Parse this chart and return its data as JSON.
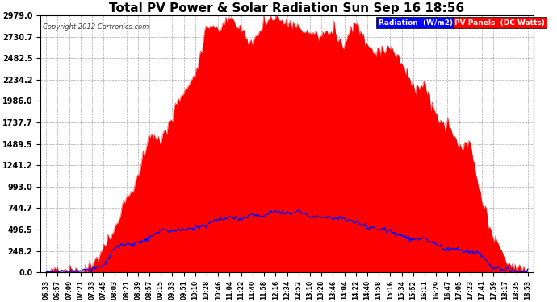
{
  "title": "Total PV Power & Solar Radiation Sun Sep 16 18:56",
  "copyright": "Copyright 2012 Cartronics.com",
  "legend_radiation": "Radiation  (W/m2)",
  "legend_pv": "PV Panels  (DC Watts)",
  "ymax": 2979.0,
  "yticks": [
    0.0,
    248.2,
    496.5,
    744.7,
    993.0,
    1241.2,
    1489.5,
    1737.7,
    1986.0,
    2234.2,
    2482.5,
    2730.7,
    2979.0
  ],
  "bg_color": "#ffffff",
  "plot_bg_color": "#ffffff",
  "grid_color": "#aaaaaa",
  "pv_color": "#ff0000",
  "radiation_color": "#0000ff",
  "x_label_fontsize": 5.5,
  "time_labels": [
    "06:33",
    "06:57",
    "07:09",
    "07:21",
    "07:33",
    "07:45",
    "08:03",
    "08:21",
    "08:39",
    "08:57",
    "09:15",
    "09:33",
    "09:51",
    "10:10",
    "10:28",
    "10:46",
    "11:04",
    "11:22",
    "11:40",
    "11:58",
    "12:16",
    "12:34",
    "12:52",
    "13:10",
    "13:28",
    "13:46",
    "14:04",
    "14:22",
    "14:40",
    "14:58",
    "15:16",
    "15:34",
    "15:52",
    "16:11",
    "16:29",
    "16:47",
    "17:05",
    "17:23",
    "17:41",
    "17:59",
    "18:17",
    "18:35",
    "18:53"
  ]
}
